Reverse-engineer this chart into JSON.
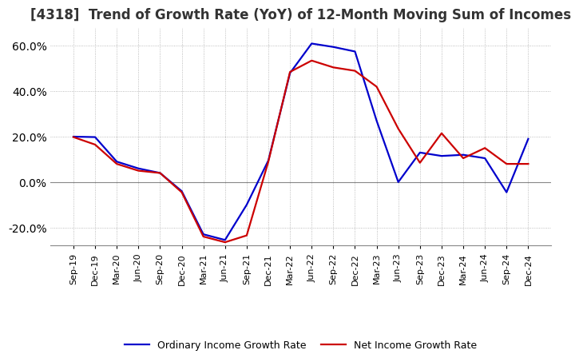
{
  "title": "[4318]  Trend of Growth Rate (YoY) of 12-Month Moving Sum of Incomes",
  "title_fontsize": 12,
  "ylim": [
    -0.28,
    0.68
  ],
  "yticks": [
    -0.2,
    0.0,
    0.2,
    0.4,
    0.6
  ],
  "background_color": "#ffffff",
  "grid_color": "#aaaaaa",
  "ordinary_color": "#0000cc",
  "net_color": "#cc0000",
  "legend_labels": [
    "Ordinary Income Growth Rate",
    "Net Income Growth Rate"
  ],
  "x_labels": [
    "Sep-19",
    "Dec-19",
    "Mar-20",
    "Jun-20",
    "Sep-20",
    "Dec-20",
    "Mar-21",
    "Jun-21",
    "Sep-21",
    "Dec-21",
    "Mar-22",
    "Jun-22",
    "Sep-22",
    "Dec-22",
    "Mar-23",
    "Jun-23",
    "Sep-23",
    "Dec-23",
    "Mar-24",
    "Jun-24",
    "Sep-24",
    "Dec-24"
  ],
  "ordinary_income_growth": [
    0.2,
    0.198,
    0.09,
    0.06,
    0.04,
    -0.04,
    -0.23,
    -0.255,
    -0.1,
    0.095,
    0.48,
    0.61,
    0.595,
    0.575,
    0.27,
    0.0,
    0.13,
    0.115,
    0.12,
    0.105,
    -0.045,
    0.19
  ],
  "net_income_growth": [
    0.198,
    0.165,
    0.08,
    0.05,
    0.04,
    -0.045,
    -0.24,
    -0.265,
    -0.235,
    0.09,
    0.485,
    0.535,
    0.505,
    0.49,
    0.42,
    0.235,
    0.085,
    0.215,
    0.105,
    0.15,
    0.08,
    0.08
  ]
}
